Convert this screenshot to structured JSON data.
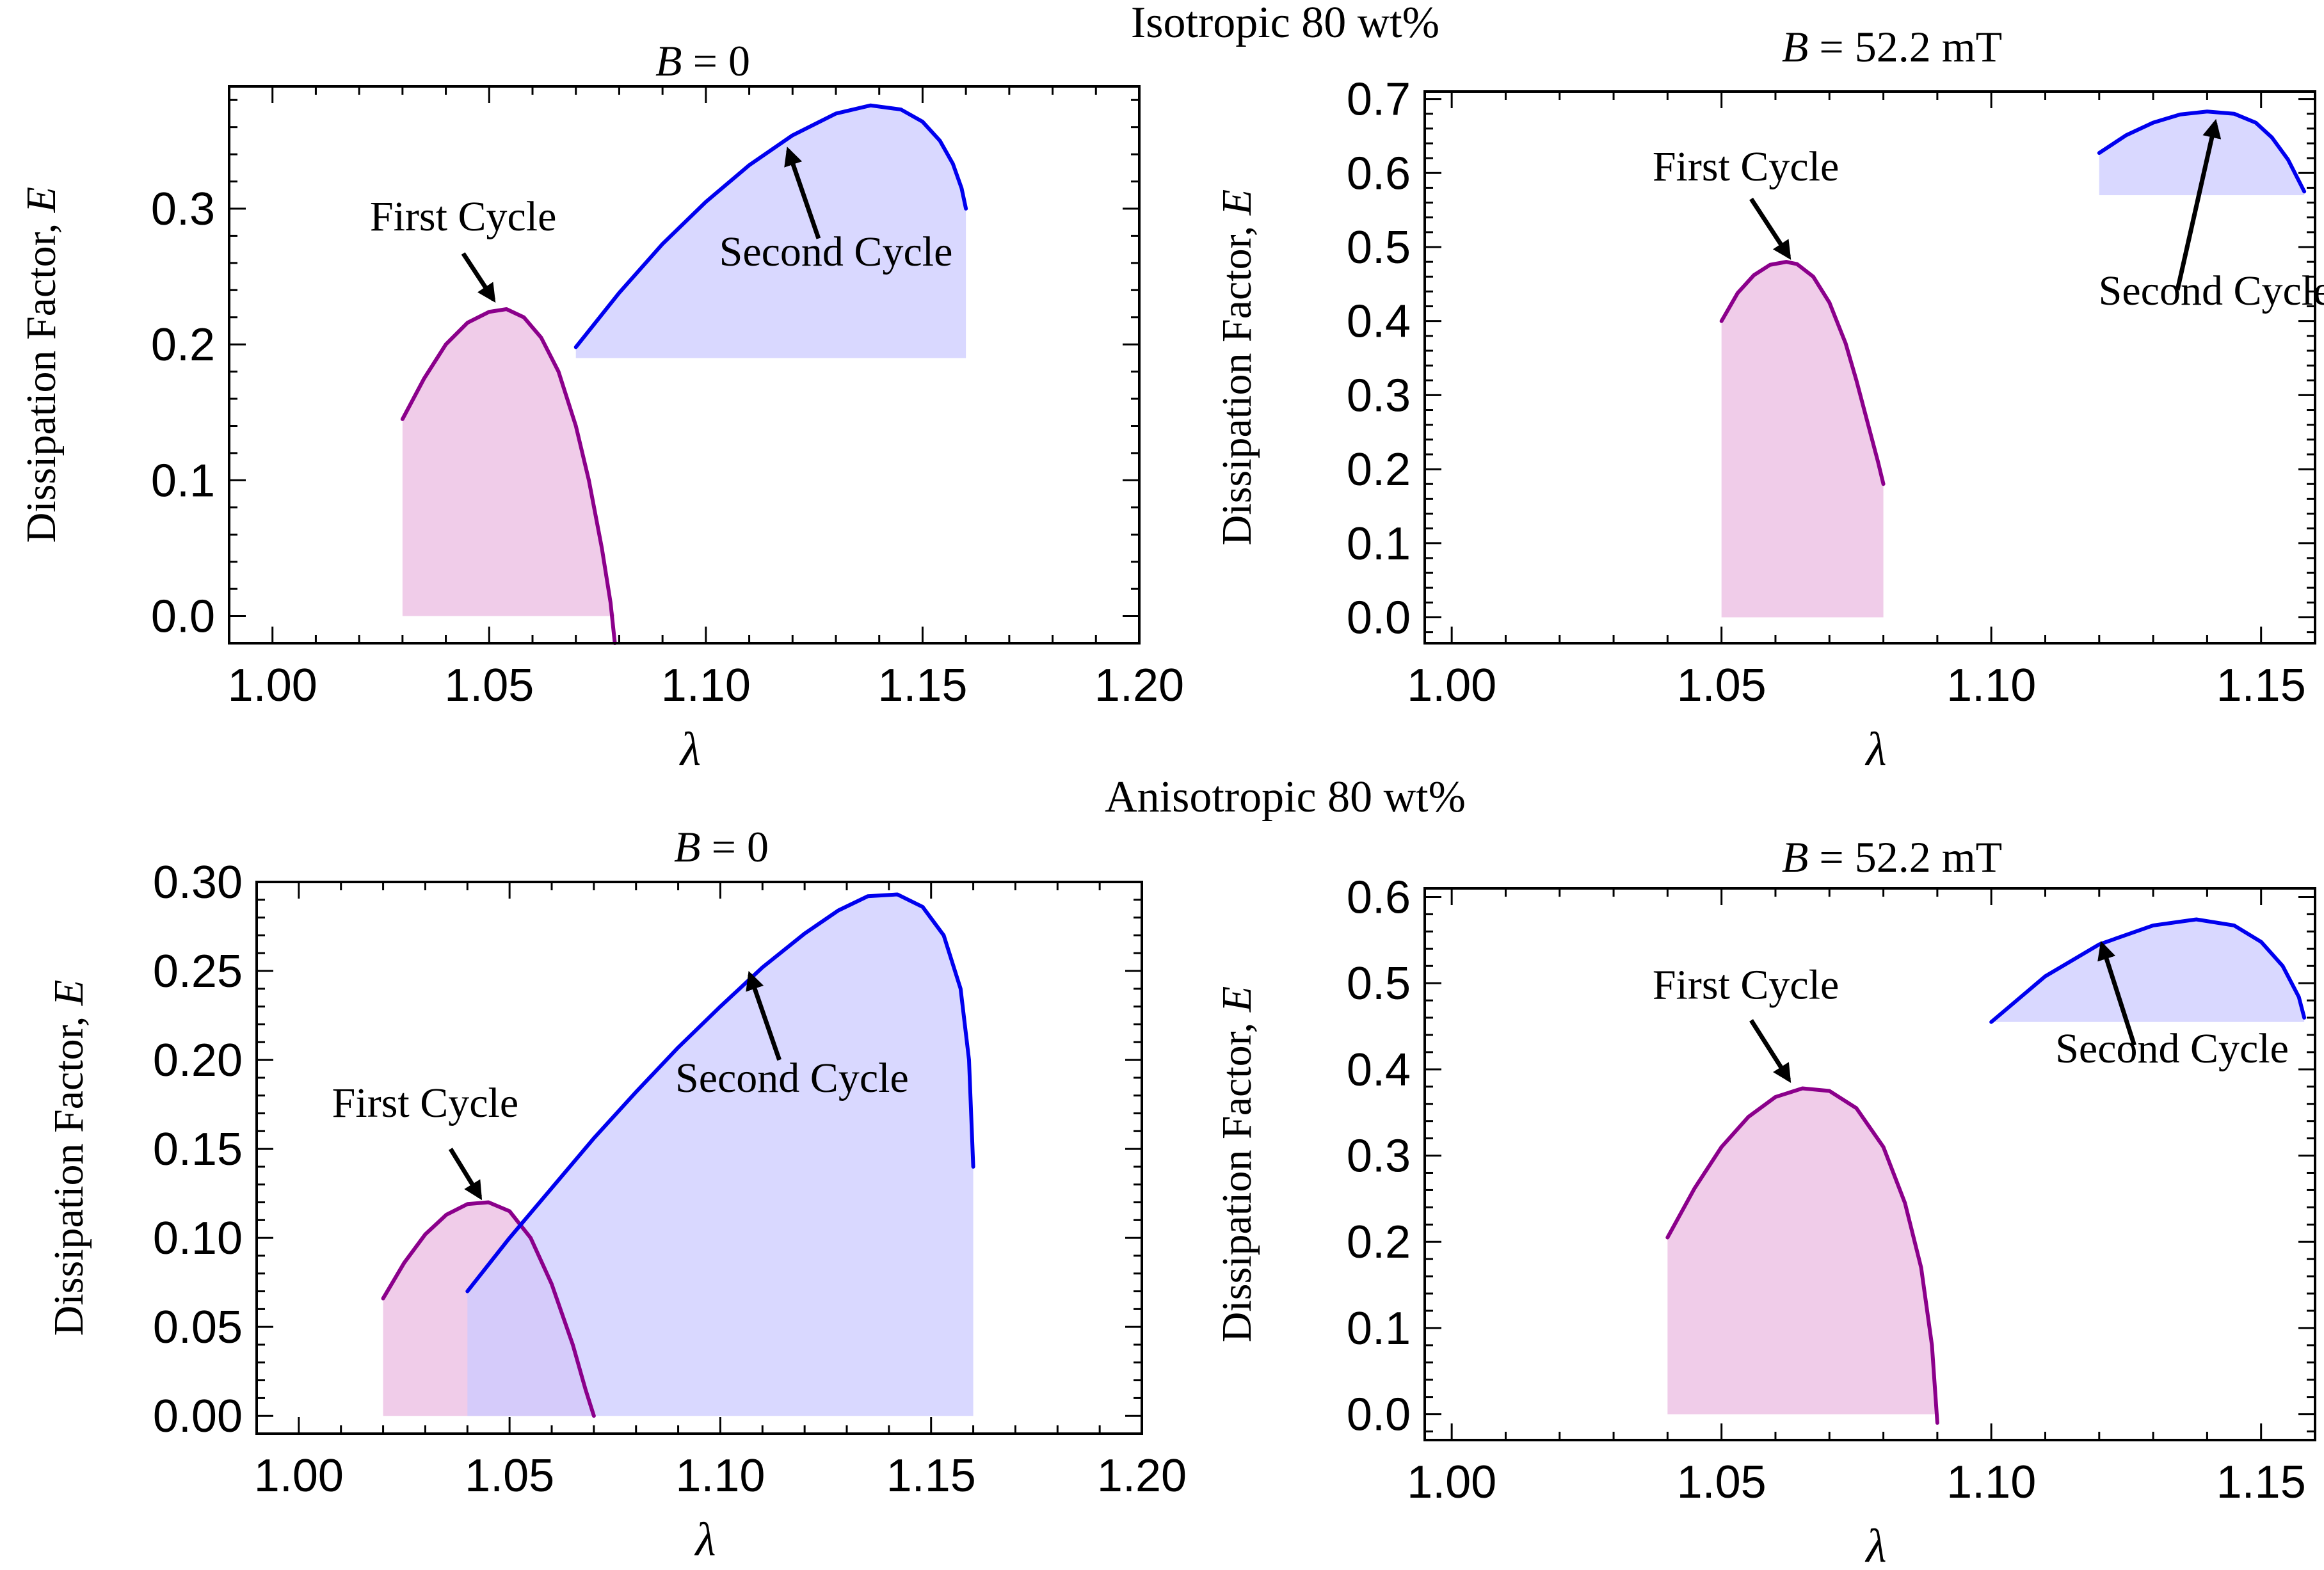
{
  "sections": [
    {
      "title": "Isotropic 80 wt%"
    },
    {
      "title": "Anisotropic 80 wt%"
    }
  ],
  "chart_data": [
    {
      "type": "area",
      "panel": "isotropic-b0",
      "title_var": "B",
      "title_rest": " = 0",
      "xlabel": "λ",
      "ylabel_main": "Dissipation Factor, ",
      "ylabel_var": "E",
      "xlim": [
        0.99,
        1.2
      ],
      "ylim": [
        -0.02,
        0.39
      ],
      "xticks": [
        1.0,
        1.05,
        1.1,
        1.15,
        1.2
      ],
      "xtick_labels": [
        "1.00",
        "1.05",
        "1.10",
        "1.15",
        "1.20"
      ],
      "yticks": [
        0.0,
        0.1,
        0.2,
        0.3
      ],
      "ytick_labels": [
        "0.0",
        "0.1",
        "0.2",
        "0.3"
      ],
      "series": [
        {
          "name": "First Cycle",
          "color": "#8b008b",
          "fill": "#efc9e8",
          "base": 0.0,
          "x": [
            1.03,
            1.035,
            1.04,
            1.045,
            1.05,
            1.054,
            1.058,
            1.062,
            1.066,
            1.07,
            1.073,
            1.076,
            1.078,
            1.079
          ],
          "y": [
            0.145,
            0.175,
            0.2,
            0.216,
            0.224,
            0.226,
            0.22,
            0.205,
            0.18,
            0.14,
            0.1,
            0.05,
            0.01,
            -0.02
          ],
          "label_pos": [
            1.044,
            0.284
          ],
          "arrow_from": [
            1.044,
            0.267
          ],
          "arrow_to": [
            1.051,
            0.233
          ]
        },
        {
          "name": "Second Cycle",
          "color": "#0000ee",
          "fill": "#cccbff",
          "base": 0.19,
          "x": [
            1.07,
            1.08,
            1.09,
            1.1,
            1.11,
            1.12,
            1.13,
            1.138,
            1.145,
            1.15,
            1.154,
            1.157,
            1.159,
            1.16
          ],
          "y": [
            0.198,
            0.238,
            0.274,
            0.305,
            0.332,
            0.354,
            0.37,
            0.376,
            0.373,
            0.364,
            0.35,
            0.333,
            0.315,
            0.3
          ],
          "label_pos": [
            1.13,
            0.258
          ],
          "arrow_from": [
            1.126,
            0.278
          ],
          "arrow_to": [
            1.119,
            0.343
          ]
        }
      ]
    },
    {
      "type": "area",
      "panel": "isotropic-b52",
      "title_var": "B",
      "title_rest": " = 52.2 mT",
      "xlabel": "λ",
      "ylabel_main": "Dissipation Factor, ",
      "ylabel_var": "E",
      "xlim": [
        0.995,
        1.16
      ],
      "ylim": [
        -0.035,
        0.71
      ],
      "xticks": [
        1.0,
        1.05,
        1.1,
        1.15
      ],
      "xtick_labels": [
        "1.00",
        "1.05",
        "1.10",
        "1.15"
      ],
      "yticks": [
        0.0,
        0.1,
        0.2,
        0.3,
        0.4,
        0.5,
        0.6,
        0.7
      ],
      "ytick_labels": [
        "0.0",
        "0.1",
        "0.2",
        "0.3",
        "0.4",
        "0.5",
        "0.6",
        "0.7"
      ],
      "series": [
        {
          "name": "First Cycle",
          "color": "#8b008b",
          "fill": "#efc9e8",
          "base": 0.0,
          "x": [
            1.05,
            1.053,
            1.056,
            1.059,
            1.062,
            1.064,
            1.067,
            1.07,
            1.073,
            1.075,
            1.077,
            1.079,
            1.08
          ],
          "y": [
            0.4,
            0.438,
            0.462,
            0.476,
            0.48,
            0.477,
            0.46,
            0.425,
            0.37,
            0.32,
            0.265,
            0.21,
            0.18
          ],
          "label_pos": [
            1.0545,
            0.59
          ],
          "arrow_from": [
            1.0555,
            0.565
          ],
          "arrow_to": [
            1.0625,
            0.487
          ]
        },
        {
          "name": "Second Cycle",
          "color": "#0000ee",
          "fill": "#cccbff",
          "base": 0.57,
          "x": [
            1.12,
            1.125,
            1.13,
            1.135,
            1.14,
            1.145,
            1.149,
            1.152,
            1.155,
            1.158
          ],
          "y": [
            0.627,
            0.651,
            0.668,
            0.679,
            0.683,
            0.68,
            0.668,
            0.648,
            0.618,
            0.575
          ],
          "label_pos": [
            1.1415,
            0.422
          ],
          "arrow_from": [
            1.1345,
            0.442
          ],
          "arrow_to": [
            1.1415,
            0.668
          ]
        }
      ]
    },
    {
      "type": "area",
      "panel": "anisotropic-b0",
      "title_var": "B",
      "title_rest": " = 0",
      "xlabel": "λ",
      "ylabel_main": "Dissipation Factor, ",
      "ylabel_var": "E",
      "xlim": [
        0.99,
        1.2
      ],
      "ylim": [
        -0.01,
        0.3
      ],
      "xticks": [
        1.0,
        1.05,
        1.1,
        1.15,
        1.2
      ],
      "xtick_labels": [
        "1.00",
        "1.05",
        "1.10",
        "1.15",
        "1.20"
      ],
      "yticks": [
        0.0,
        0.05,
        0.1,
        0.15,
        0.2,
        0.25,
        0.3
      ],
      "ytick_labels": [
        "0.00",
        "0.05",
        "0.10",
        "0.15",
        "0.20",
        "0.25",
        "0.30"
      ],
      "series": [
        {
          "name": "First Cycle",
          "color": "#8b008b",
          "fill": "#efc9e8",
          "base": 0.0,
          "x": [
            1.02,
            1.025,
            1.03,
            1.035,
            1.04,
            1.045,
            1.05,
            1.055,
            1.06,
            1.065,
            1.068,
            1.07
          ],
          "y": [
            0.066,
            0.086,
            0.102,
            0.113,
            0.119,
            0.12,
            0.115,
            0.1,
            0.074,
            0.04,
            0.015,
            0.0
          ],
          "label_pos": [
            1.03,
            0.168
          ],
          "arrow_from": [
            1.036,
            0.15
          ],
          "arrow_to": [
            1.043,
            0.123
          ]
        },
        {
          "name": "Second Cycle",
          "color": "#0000ee",
          "fill": "#cccbff",
          "base": 0.0,
          "x": [
            1.04,
            1.05,
            1.06,
            1.07,
            1.08,
            1.09,
            1.1,
            1.11,
            1.12,
            1.128,
            1.135,
            1.142,
            1.148,
            1.153,
            1.157,
            1.159,
            1.16
          ],
          "y": [
            0.07,
            0.1,
            0.128,
            0.156,
            0.182,
            0.207,
            0.23,
            0.252,
            0.271,
            0.284,
            0.292,
            0.293,
            0.286,
            0.27,
            0.24,
            0.2,
            0.14
          ],
          "label_pos": [
            1.117,
            0.182
          ],
          "arrow_from": [
            1.114,
            0.2
          ],
          "arrow_to": [
            1.107,
            0.248
          ]
        }
      ]
    },
    {
      "type": "area",
      "panel": "anisotropic-b52",
      "title_var": "B",
      "title_rest": " = 52.2 mT",
      "xlabel": "λ",
      "ylabel_main": "Dissipation Factor, ",
      "ylabel_var": "E",
      "xlim": [
        0.995,
        1.16
      ],
      "ylim": [
        -0.03,
        0.61
      ],
      "xticks": [
        1.0,
        1.05,
        1.1,
        1.15
      ],
      "xtick_labels": [
        "1.00",
        "1.05",
        "1.10",
        "1.15"
      ],
      "yticks": [
        0.0,
        0.1,
        0.2,
        0.3,
        0.4,
        0.5,
        0.6
      ],
      "ytick_labels": [
        "0.0",
        "0.1",
        "0.2",
        "0.3",
        "0.4",
        "0.5",
        "0.6"
      ],
      "series": [
        {
          "name": "First Cycle",
          "color": "#8b008b",
          "fill": "#efc9e8",
          "base": 0.0,
          "x": [
            1.04,
            1.045,
            1.05,
            1.055,
            1.06,
            1.065,
            1.07,
            1.075,
            1.08,
            1.084,
            1.087,
            1.089,
            1.09
          ],
          "y": [
            0.205,
            0.262,
            0.31,
            0.345,
            0.368,
            0.378,
            0.375,
            0.355,
            0.31,
            0.245,
            0.17,
            0.08,
            -0.01
          ],
          "label_pos": [
            1.0545,
            0.482
          ],
          "arrow_from": [
            1.0555,
            0.457
          ],
          "arrow_to": [
            1.0625,
            0.388
          ]
        },
        {
          "name": "Second Cycle",
          "color": "#0000ee",
          "fill": "#cccbff",
          "base": 0.455,
          "x": [
            1.1,
            1.11,
            1.12,
            1.13,
            1.138,
            1.145,
            1.15,
            1.154,
            1.157,
            1.158
          ],
          "y": [
            0.455,
            0.508,
            0.545,
            0.567,
            0.574,
            0.567,
            0.548,
            0.52,
            0.484,
            0.46
          ],
          "label_pos": [
            1.1335,
            0.408
          ],
          "arrow_from": [
            1.1265,
            0.428
          ],
          "arrow_to": [
            1.1205,
            0.545
          ]
        }
      ]
    }
  ]
}
